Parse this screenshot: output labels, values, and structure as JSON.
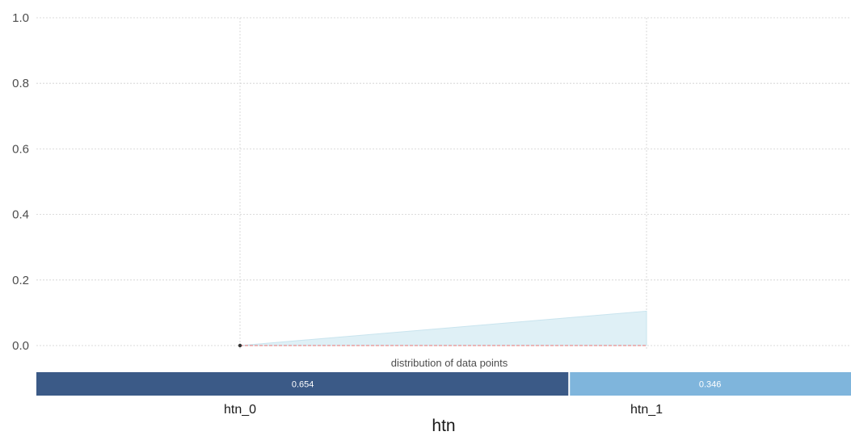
{
  "chart_data": {
    "type": "area",
    "xlabel": "htn",
    "ylabel": "",
    "title": "",
    "ylim": [
      0,
      1.0
    ],
    "y_ticks": [
      "0.0",
      "0.2",
      "0.4",
      "0.6",
      "0.8",
      "1.0"
    ],
    "categories": [
      "htn_0",
      "htn_1"
    ],
    "series": [
      {
        "values": [
          0.0,
          0.105
        ]
      }
    ],
    "reference_line": 0.0,
    "grid": true,
    "distribution": {
      "title": "distribution of data points",
      "values": [
        0.654,
        0.346
      ],
      "labels": [
        "0.654",
        "0.346"
      ],
      "colors": [
        "#3b5a87",
        "#7fb5dc"
      ]
    },
    "colors": {
      "area_fill": "#dff0f6",
      "area_edge": "#c9e4ee",
      "reference_line": "#e57373",
      "point": "#333333"
    }
  }
}
